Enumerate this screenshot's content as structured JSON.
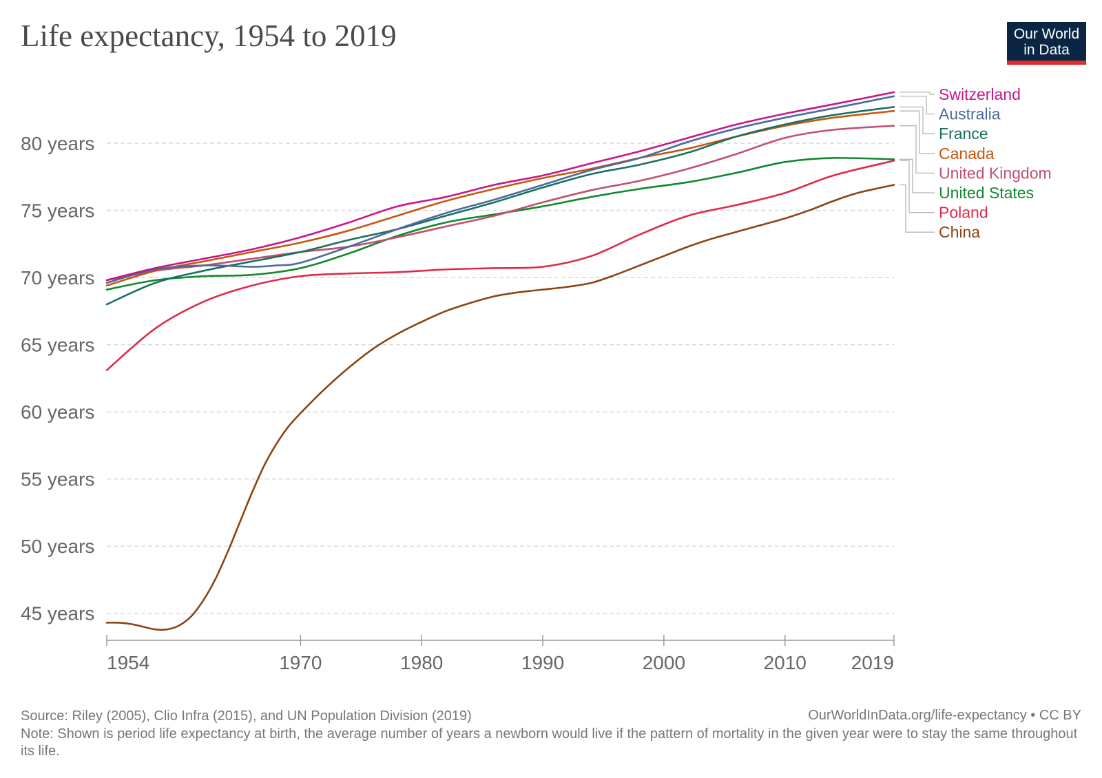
{
  "header": {
    "title": "Life expectancy, 1954 to 2019",
    "logo_line1": "Our World",
    "logo_line2": "in Data"
  },
  "footer": {
    "source": "Source: Riley (2005), Clio Infra (2015), and UN Population Division (2019)",
    "credit": "OurWorldInData.org/life-expectancy • CC BY",
    "note": "Note: Shown is period life expectancy at birth, the average number of years a newborn would live if the pattern of mortality in the given year were to stay the same throughout its life."
  },
  "colors": {
    "grid": "#d9d9d9",
    "axis_text": "#666666",
    "logo_bg": "#0b2545",
    "logo_accent": "#e32b2b"
  },
  "chart_data": {
    "type": "line",
    "title": "Life expectancy, 1954 to 2019",
    "xlabel": "",
    "ylabel": "",
    "xlim": [
      1954,
      2019
    ],
    "ylim": [
      43.5,
      84
    ],
    "x_ticks": [
      1954,
      1970,
      1980,
      1990,
      2000,
      2010,
      2019
    ],
    "y_ticks": [
      45,
      50,
      55,
      60,
      65,
      70,
      75,
      80
    ],
    "y_tick_labels": [
      "45 years",
      "50 years",
      "55 years",
      "60 years",
      "65 years",
      "70 years",
      "75 years",
      "80 years"
    ],
    "grid": "horizontal dashed",
    "legend": "right",
    "series": [
      {
        "name": "Switzerland",
        "color": "#c8168a",
        "points": [
          [
            1954,
            69.8
          ],
          [
            1958,
            70.7
          ],
          [
            1962,
            71.4
          ],
          [
            1966,
            72.1
          ],
          [
            1970,
            73.0
          ],
          [
            1974,
            74.1
          ],
          [
            1978,
            75.3
          ],
          [
            1982,
            76.0
          ],
          [
            1986,
            76.9
          ],
          [
            1990,
            77.6
          ],
          [
            1994,
            78.5
          ],
          [
            1998,
            79.4
          ],
          [
            2002,
            80.4
          ],
          [
            2006,
            81.4
          ],
          [
            2010,
            82.2
          ],
          [
            2014,
            82.9
          ],
          [
            2019,
            83.8
          ]
        ]
      },
      {
        "name": "Australia",
        "color": "#4c6a9c",
        "points": [
          [
            1954,
            69.6
          ],
          [
            1958,
            70.6
          ],
          [
            1962,
            70.9
          ],
          [
            1966,
            70.8
          ],
          [
            1968,
            70.9
          ],
          [
            1970,
            71.1
          ],
          [
            1974,
            72.3
          ],
          [
            1978,
            73.6
          ],
          [
            1982,
            74.8
          ],
          [
            1986,
            75.8
          ],
          [
            1990,
            76.9
          ],
          [
            1994,
            78.0
          ],
          [
            1998,
            78.9
          ],
          [
            2002,
            80.1
          ],
          [
            2006,
            81.1
          ],
          [
            2010,
            81.9
          ],
          [
            2014,
            82.6
          ],
          [
            2019,
            83.5
          ]
        ]
      },
      {
        "name": "France",
        "color": "#18715e",
        "points": [
          [
            1954,
            68.0
          ],
          [
            1958,
            69.6
          ],
          [
            1962,
            70.5
          ],
          [
            1966,
            71.2
          ],
          [
            1970,
            71.9
          ],
          [
            1974,
            72.8
          ],
          [
            1978,
            73.6
          ],
          [
            1982,
            74.6
          ],
          [
            1986,
            75.6
          ],
          [
            1990,
            76.7
          ],
          [
            1994,
            77.7
          ],
          [
            1998,
            78.4
          ],
          [
            2002,
            79.3
          ],
          [
            2006,
            80.5
          ],
          [
            2010,
            81.4
          ],
          [
            2014,
            82.1
          ],
          [
            2019,
            82.7
          ]
        ]
      },
      {
        "name": "Canada",
        "color": "#c6580e",
        "points": [
          [
            1954,
            69.4
          ],
          [
            1958,
            70.5
          ],
          [
            1962,
            71.2
          ],
          [
            1966,
            71.9
          ],
          [
            1970,
            72.6
          ],
          [
            1974,
            73.5
          ],
          [
            1978,
            74.6
          ],
          [
            1982,
            75.7
          ],
          [
            1986,
            76.6
          ],
          [
            1990,
            77.4
          ],
          [
            1994,
            78.1
          ],
          [
            1998,
            78.9
          ],
          [
            2002,
            79.6
          ],
          [
            2006,
            80.5
          ],
          [
            2010,
            81.3
          ],
          [
            2014,
            81.9
          ],
          [
            2019,
            82.4
          ]
        ]
      },
      {
        "name": "United Kingdom",
        "color": "#c24f6d",
        "points": [
          [
            1954,
            69.8
          ],
          [
            1958,
            70.5
          ],
          [
            1962,
            70.9
          ],
          [
            1966,
            71.4
          ],
          [
            1970,
            71.9
          ],
          [
            1974,
            72.3
          ],
          [
            1978,
            73.0
          ],
          [
            1982,
            73.8
          ],
          [
            1986,
            74.6
          ],
          [
            1990,
            75.6
          ],
          [
            1994,
            76.5
          ],
          [
            1998,
            77.2
          ],
          [
            2002,
            78.1
          ],
          [
            2006,
            79.2
          ],
          [
            2010,
            80.4
          ],
          [
            2014,
            81.0
          ],
          [
            2019,
            81.3
          ]
        ]
      },
      {
        "name": "United States",
        "color": "#13872e",
        "points": [
          [
            1954,
            69.1
          ],
          [
            1958,
            69.8
          ],
          [
            1962,
            70.1
          ],
          [
            1966,
            70.2
          ],
          [
            1970,
            70.7
          ],
          [
            1974,
            71.8
          ],
          [
            1978,
            73.1
          ],
          [
            1982,
            74.1
          ],
          [
            1986,
            74.7
          ],
          [
            1990,
            75.3
          ],
          [
            1994,
            76.0
          ],
          [
            1998,
            76.6
          ],
          [
            2002,
            77.1
          ],
          [
            2006,
            77.8
          ],
          [
            2010,
            78.6
          ],
          [
            2014,
            78.9
          ],
          [
            2019,
            78.8
          ]
        ]
      },
      {
        "name": "Poland",
        "color": "#dd2b4b",
        "points": [
          [
            1954,
            63.1
          ],
          [
            1958,
            66.2
          ],
          [
            1962,
            68.2
          ],
          [
            1966,
            69.4
          ],
          [
            1970,
            70.1
          ],
          [
            1974,
            70.3
          ],
          [
            1978,
            70.4
          ],
          [
            1982,
            70.6
          ],
          [
            1986,
            70.7
          ],
          [
            1990,
            70.8
          ],
          [
            1994,
            71.6
          ],
          [
            1998,
            73.2
          ],
          [
            2002,
            74.6
          ],
          [
            2006,
            75.4
          ],
          [
            2010,
            76.3
          ],
          [
            2014,
            77.6
          ],
          [
            2019,
            78.7
          ]
        ]
      },
      {
        "name": "China",
        "color": "#8b4413",
        "points": [
          [
            1954,
            44.3
          ],
          [
            1955,
            44.3
          ],
          [
            1956,
            44.2
          ],
          [
            1957,
            44.0
          ],
          [
            1958,
            43.8
          ],
          [
            1959,
            43.8
          ],
          [
            1960,
            44.1
          ],
          [
            1961,
            44.8
          ],
          [
            1962,
            46.0
          ],
          [
            1963,
            47.6
          ],
          [
            1964,
            49.6
          ],
          [
            1965,
            51.8
          ],
          [
            1966,
            54.0
          ],
          [
            1967,
            56.0
          ],
          [
            1968,
            57.6
          ],
          [
            1969,
            58.9
          ],
          [
            1970,
            59.9
          ],
          [
            1972,
            61.7
          ],
          [
            1974,
            63.3
          ],
          [
            1976,
            64.7
          ],
          [
            1978,
            65.8
          ],
          [
            1980,
            66.7
          ],
          [
            1982,
            67.5
          ],
          [
            1984,
            68.1
          ],
          [
            1986,
            68.6
          ],
          [
            1988,
            68.9
          ],
          [
            1990,
            69.1
          ],
          [
            1992,
            69.3
          ],
          [
            1994,
            69.6
          ],
          [
            1996,
            70.2
          ],
          [
            1998,
            70.9
          ],
          [
            2000,
            71.6
          ],
          [
            2002,
            72.3
          ],
          [
            2004,
            72.9
          ],
          [
            2006,
            73.4
          ],
          [
            2008,
            73.9
          ],
          [
            2010,
            74.4
          ],
          [
            2012,
            75.0
          ],
          [
            2014,
            75.7
          ],
          [
            2016,
            76.3
          ],
          [
            2019,
            76.9
          ]
        ]
      }
    ]
  }
}
